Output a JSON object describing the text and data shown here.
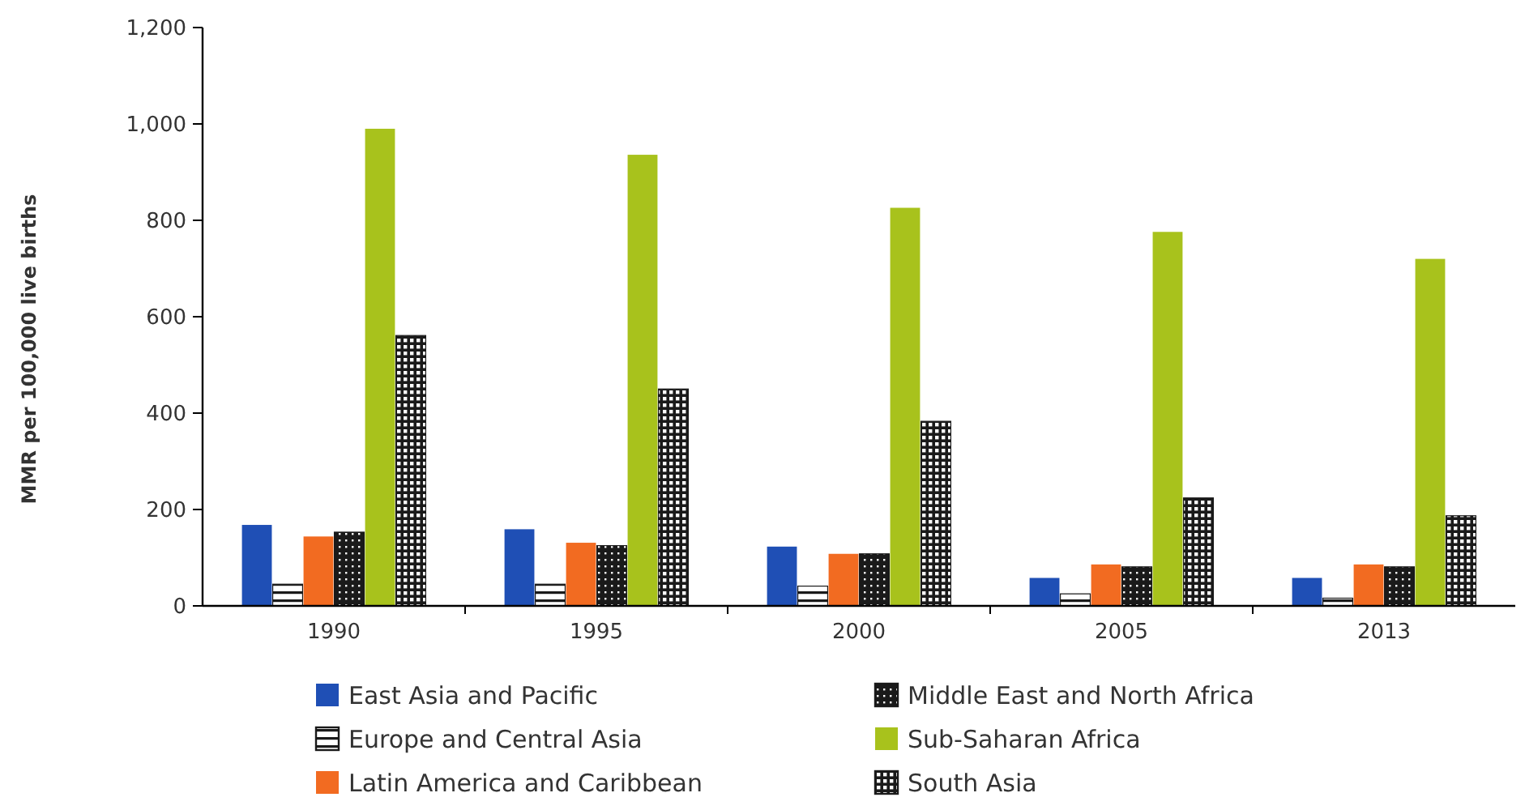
{
  "chart_data": {
    "type": "bar",
    "ylabel": "MMR per 100,000 live births",
    "categories": [
      "1990",
      "1995",
      "2000",
      "2005",
      "2013"
    ],
    "series": [
      {
        "name": "East Asia and Pacific",
        "color": "#1f4fb5",
        "values": [
          168,
          159,
          123,
          58,
          58
        ]
      },
      {
        "name": "Europe and Central Asia",
        "color": "#1a1a1a",
        "values": [
          45,
          45,
          41,
          25,
          16
        ]
      },
      {
        "name": "Latin America and Caribbean",
        "color": "#f26b21",
        "values": [
          144,
          131,
          108,
          86,
          86
        ]
      },
      {
        "name": "Middle East and North Africa",
        "color": "#1a1a1a",
        "values": [
          153,
          125,
          108,
          81,
          81
        ]
      },
      {
        "name": "Sub-Saharan Africa",
        "color": "#a8c21c",
        "values": [
          990,
          936,
          826,
          776,
          720
        ]
      },
      {
        "name": "South Asia",
        "color": "#1a1a1a",
        "values": [
          561,
          450,
          383,
          224,
          187
        ]
      }
    ],
    "ylim": [
      0,
      1200
    ],
    "yticks": [
      {
        "value": 0,
        "label": "0"
      },
      {
        "value": 200,
        "label": "200"
      },
      {
        "value": 400,
        "label": "400"
      },
      {
        "value": 600,
        "label": "600"
      },
      {
        "value": 800,
        "label": "800"
      },
      {
        "value": 1000,
        "label": "1,000"
      },
      {
        "value": 1200,
        "label": "1,200"
      }
    ],
    "grid": false,
    "legend": "bottom"
  }
}
